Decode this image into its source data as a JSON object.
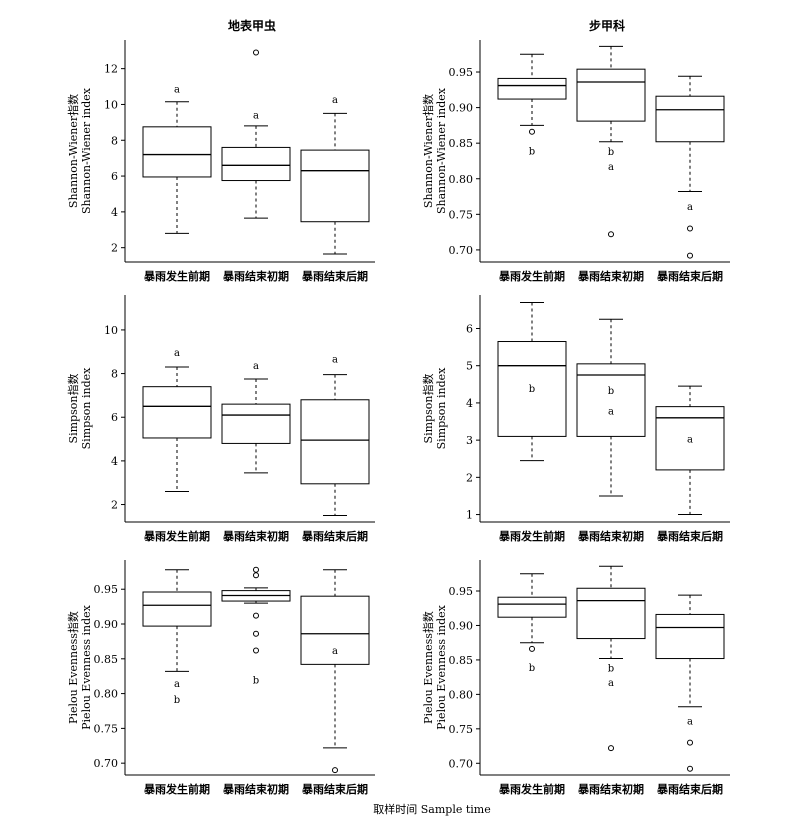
{
  "xlabel": "取样时间 Sample time",
  "column_titles": [
    "地表甲虫",
    "步甲科"
  ],
  "chart_data": [
    {
      "type": "boxplot",
      "title": "地表甲虫",
      "ylabel": [
        "Shannon-Wiener指数",
        "Shannon-Wiener index"
      ],
      "categories": [
        "暴雨发生前期",
        "暴雨结束初期",
        "暴雨结束后期"
      ],
      "ylim": [
        1.2,
        13.6
      ],
      "yticks": [
        2,
        4,
        6,
        8,
        10,
        12
      ],
      "ytick_labels": [
        "2",
        "4",
        "6",
        "8",
        "10",
        "12"
      ],
      "boxes": [
        {
          "whisker_low": 2.8,
          "q1": 5.95,
          "median": 7.2,
          "q3": 8.75,
          "whisker_high": 10.15,
          "outliers": [],
          "letter": "a",
          "letter_y": 10.9
        },
        {
          "whisker_low": 3.65,
          "q1": 5.75,
          "median": 6.6,
          "q3": 7.6,
          "whisker_high": 8.8,
          "outliers": [
            12.9
          ],
          "letter": "a",
          "letter_y": 9.45
        },
        {
          "whisker_low": 1.65,
          "q1": 3.45,
          "median": 6.3,
          "q3": 7.45,
          "whisker_high": 9.5,
          "outliers": [],
          "letter": "a",
          "letter_y": 10.3
        }
      ]
    },
    {
      "type": "boxplot",
      "title": "步甲科",
      "ylabel": [
        "Shannon-Wiener指数",
        "Shannon-Wiener index"
      ],
      "categories": [
        "暴雨发生前期",
        "暴雨结束初期",
        "暴雨结束后期"
      ],
      "ylim": [
        0.683,
        0.995
      ],
      "yticks": [
        0.7,
        0.75,
        0.8,
        0.85,
        0.9,
        0.95
      ],
      "ytick_labels": [
        "0.70",
        "0.75",
        "0.80",
        "0.85",
        "0.90",
        "0.95"
      ],
      "boxes": [
        {
          "whisker_low": 0.875,
          "q1": 0.912,
          "median": 0.931,
          "q3": 0.941,
          "whisker_high": 0.975,
          "outliers": [
            0.866
          ],
          "letter": "b",
          "letter_y": 0.84
        },
        {
          "whisker_low": 0.852,
          "q1": 0.881,
          "median": 0.936,
          "q3": 0.954,
          "whisker_high": 0.986,
          "outliers": [
            0.722
          ],
          "letter": "b",
          "letter_y": 0.839,
          "letter2": "a",
          "letter2_y": 0.818
        },
        {
          "whisker_low": 0.782,
          "q1": 0.852,
          "median": 0.897,
          "q3": 0.916,
          "whisker_high": 0.944,
          "outliers": [
            0.73,
            0.692
          ],
          "letter": "a",
          "letter_y": 0.762
        }
      ]
    },
    {
      "type": "boxplot",
      "title": "",
      "ylabel": [
        "Simpson指数",
        "Simpson index"
      ],
      "categories": [
        "暴雨发生前期",
        "暴雨结束初期",
        "暴雨结束后期"
      ],
      "ylim": [
        1.2,
        11.6
      ],
      "yticks": [
        2,
        4,
        6,
        8,
        10
      ],
      "ytick_labels": [
        "2",
        "4",
        "6",
        "8",
        "10"
      ],
      "boxes": [
        {
          "whisker_low": 2.6,
          "q1": 5.05,
          "median": 6.5,
          "q3": 7.4,
          "whisker_high": 8.3,
          "outliers": [],
          "letter": "a",
          "letter_y": 9.0
        },
        {
          "whisker_low": 3.45,
          "q1": 4.8,
          "median": 6.1,
          "q3": 6.6,
          "whisker_high": 7.75,
          "outliers": [],
          "letter": "a",
          "letter_y": 8.4
        },
        {
          "whisker_low": 1.5,
          "q1": 2.95,
          "median": 4.95,
          "q3": 6.8,
          "whisker_high": 7.95,
          "outliers": [],
          "letter": "a",
          "letter_y": 8.7
        }
      ]
    },
    {
      "type": "boxplot",
      "title": "",
      "ylabel": [
        "Simpson指数",
        "Simpson index"
      ],
      "categories": [
        "暴雨发生前期",
        "暴雨结束初期",
        "暴雨结束后期"
      ],
      "ylim": [
        0.8,
        6.9
      ],
      "yticks": [
        1,
        2,
        3,
        4,
        5,
        6
      ],
      "ytick_labels": [
        "1",
        "2",
        "3",
        "4",
        "5",
        "6"
      ],
      "boxes": [
        {
          "whisker_low": 2.45,
          "q1": 3.1,
          "median": 5.0,
          "q3": 5.65,
          "whisker_high": 6.7,
          "outliers": [],
          "letter": "b",
          "letter_y": 4.4
        },
        {
          "whisker_low": 1.5,
          "q1": 3.1,
          "median": 4.75,
          "q3": 5.05,
          "whisker_high": 6.25,
          "outliers": [],
          "letter": "b",
          "letter_y": 4.35,
          "letter2": "a",
          "letter2_y": 3.8
        },
        {
          "whisker_low": 1.0,
          "q1": 2.2,
          "median": 3.6,
          "q3": 3.9,
          "whisker_high": 4.45,
          "outliers": [],
          "letter": "a",
          "letter_y": 3.05
        }
      ]
    },
    {
      "type": "boxplot",
      "title": "",
      "ylabel": [
        "Pielou Evenness指数",
        "Pielou Evenness index"
      ],
      "categories": [
        "暴雨发生前期",
        "暴雨结束初期",
        "暴雨结束后期"
      ],
      "ylim": [
        0.683,
        0.992
      ],
      "yticks": [
        0.7,
        0.75,
        0.8,
        0.85,
        0.9,
        0.95
      ],
      "ytick_labels": [
        "0.70",
        "0.75",
        "0.80",
        "0.85",
        "0.90",
        "0.95"
      ],
      "boxes": [
        {
          "whisker_low": 0.832,
          "q1": 0.897,
          "median": 0.927,
          "q3": 0.946,
          "whisker_high": 0.978,
          "outliers": [],
          "letter": "a",
          "letter_y": 0.815,
          "letter2": "b",
          "letter2_y": 0.792
        },
        {
          "whisker_low": 0.93,
          "q1": 0.933,
          "median": 0.941,
          "q3": 0.948,
          "whisker_high": 0.952,
          "outliers": [
            0.978,
            0.97,
            0.912,
            0.886,
            0.862
          ],
          "letter": "b",
          "letter_y": 0.82
        },
        {
          "whisker_low": 0.722,
          "q1": 0.842,
          "median": 0.886,
          "q3": 0.94,
          "whisker_high": 0.978,
          "outliers": [
            0.69
          ],
          "letter": "a",
          "letter_y": 0.863
        }
      ]
    },
    {
      "type": "boxplot",
      "title": "",
      "ylabel": [
        "Pielou Evenness指数",
        "Pielou Evenness index"
      ],
      "categories": [
        "暴雨发生前期",
        "暴雨结束初期",
        "暴雨结束后期"
      ],
      "ylim": [
        0.683,
        0.995
      ],
      "yticks": [
        0.7,
        0.75,
        0.8,
        0.85,
        0.9,
        0.95
      ],
      "ytick_labels": [
        "0.70",
        "0.75",
        "0.80",
        "0.85",
        "0.90",
        "0.95"
      ],
      "boxes": [
        {
          "whisker_low": 0.875,
          "q1": 0.912,
          "median": 0.931,
          "q3": 0.941,
          "whisker_high": 0.975,
          "outliers": [
            0.866
          ],
          "letter": "b",
          "letter_y": 0.84
        },
        {
          "whisker_low": 0.852,
          "q1": 0.881,
          "median": 0.936,
          "q3": 0.954,
          "whisker_high": 0.986,
          "outliers": [
            0.722
          ],
          "letter": "b",
          "letter_y": 0.839,
          "letter2": "a",
          "letter2_y": 0.818
        },
        {
          "whisker_low": 0.782,
          "q1": 0.852,
          "median": 0.897,
          "q3": 0.916,
          "whisker_high": 0.944,
          "outliers": [
            0.73,
            0.692
          ],
          "letter": "a",
          "letter_y": 0.762
        }
      ]
    }
  ]
}
